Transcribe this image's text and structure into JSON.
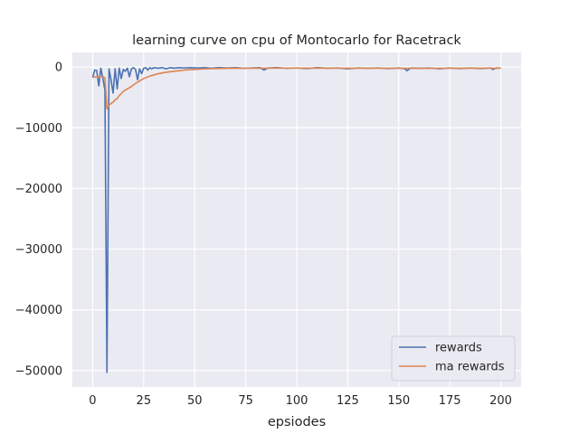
{
  "chart_data": {
    "type": "line",
    "title": "learning curve on cpu of Montocarlo for Racetrack",
    "xlabel": "epsiodes",
    "ylabel": "",
    "xlim": [
      -9.95,
      209.95
    ],
    "ylim": [
      -52700,
      2400
    ],
    "xticks": [
      0,
      25,
      50,
      75,
      100,
      125,
      150,
      175,
      200
    ],
    "yticks": [
      0,
      -10000,
      -20000,
      -30000,
      -40000,
      -50000
    ],
    "ytick_labels": [
      "0",
      "−10000",
      "−20000",
      "−30000",
      "−40000",
      "−50000"
    ],
    "grid": true,
    "legend_position": "lower-right",
    "series": [
      {
        "name": "rewards",
        "color": "#4c72b0",
        "points": [
          [
            0,
            -1700
          ],
          [
            1,
            -500
          ],
          [
            2,
            -600
          ],
          [
            3,
            -3100
          ],
          [
            4,
            -200
          ],
          [
            5,
            -1900
          ],
          [
            6,
            -3800
          ],
          [
            7,
            -50300
          ],
          [
            8,
            -300
          ],
          [
            9,
            -2100
          ],
          [
            10,
            -4300
          ],
          [
            11,
            -300
          ],
          [
            12,
            -3600
          ],
          [
            13,
            -200
          ],
          [
            14,
            -1900
          ],
          [
            15,
            -400
          ],
          [
            16,
            -700
          ],
          [
            17,
            -200
          ],
          [
            18,
            -1600
          ],
          [
            19,
            -300
          ],
          [
            20,
            -100
          ],
          [
            21,
            -400
          ],
          [
            22,
            -2100
          ],
          [
            23,
            -300
          ],
          [
            24,
            -1100
          ],
          [
            25,
            -200
          ],
          [
            26,
            -100
          ],
          [
            27,
            -500
          ],
          [
            28,
            -100
          ],
          [
            29,
            -300
          ],
          [
            30,
            -100
          ],
          [
            32,
            -200
          ],
          [
            34,
            -100
          ],
          [
            36,
            -300
          ],
          [
            38,
            -100
          ],
          [
            40,
            -200
          ],
          [
            42,
            -100
          ],
          [
            45,
            -150
          ],
          [
            48,
            -100
          ],
          [
            52,
            -150
          ],
          [
            55,
            -100
          ],
          [
            58,
            -200
          ],
          [
            62,
            -100
          ],
          [
            66,
            -150
          ],
          [
            70,
            -100
          ],
          [
            74,
            -200
          ],
          [
            78,
            -150
          ],
          [
            82,
            -100
          ],
          [
            84,
            -500
          ],
          [
            86,
            -150
          ],
          [
            90,
            -100
          ],
          [
            95,
            -200
          ],
          [
            100,
            -150
          ],
          [
            105,
            -250
          ],
          [
            110,
            -100
          ],
          [
            115,
            -200
          ],
          [
            120,
            -150
          ],
          [
            125,
            -300
          ],
          [
            130,
            -150
          ],
          [
            135,
            -200
          ],
          [
            140,
            -150
          ],
          [
            145,
            -250
          ],
          [
            150,
            -150
          ],
          [
            153,
            -300
          ],
          [
            154,
            -600
          ],
          [
            156,
            -150
          ],
          [
            160,
            -200
          ],
          [
            165,
            -150
          ],
          [
            170,
            -300
          ],
          [
            175,
            -150
          ],
          [
            180,
            -250
          ],
          [
            185,
            -150
          ],
          [
            190,
            -250
          ],
          [
            195,
            -150
          ],
          [
            196,
            -400
          ],
          [
            198,
            -150
          ],
          [
            200,
            -200
          ]
        ]
      },
      {
        "name": "ma rewards",
        "color": "#dd8452",
        "points": [
          [
            0,
            -1700
          ],
          [
            1,
            -1650
          ],
          [
            2,
            -1600
          ],
          [
            3,
            -1700
          ],
          [
            4,
            -1550
          ],
          [
            5,
            -1600
          ],
          [
            6,
            -1800
          ],
          [
            7,
            -6900
          ],
          [
            8,
            -6300
          ],
          [
            9,
            -6000
          ],
          [
            10,
            -5800
          ],
          [
            11,
            -5400
          ],
          [
            12,
            -5200
          ],
          [
            13,
            -4700
          ],
          [
            14,
            -4400
          ],
          [
            15,
            -4000
          ],
          [
            17,
            -3600
          ],
          [
            19,
            -3200
          ],
          [
            21,
            -2700
          ],
          [
            23,
            -2300
          ],
          [
            25,
            -1900
          ],
          [
            28,
            -1500
          ],
          [
            31,
            -1200
          ],
          [
            35,
            -900
          ],
          [
            40,
            -700
          ],
          [
            45,
            -500
          ],
          [
            50,
            -400
          ],
          [
            55,
            -300
          ],
          [
            60,
            -250
          ],
          [
            70,
            -200
          ],
          [
            80,
            -200
          ],
          [
            90,
            -180
          ],
          [
            100,
            -180
          ],
          [
            120,
            -200
          ],
          [
            140,
            -200
          ],
          [
            160,
            -220
          ],
          [
            180,
            -200
          ],
          [
            200,
            -200
          ]
        ]
      }
    ]
  }
}
